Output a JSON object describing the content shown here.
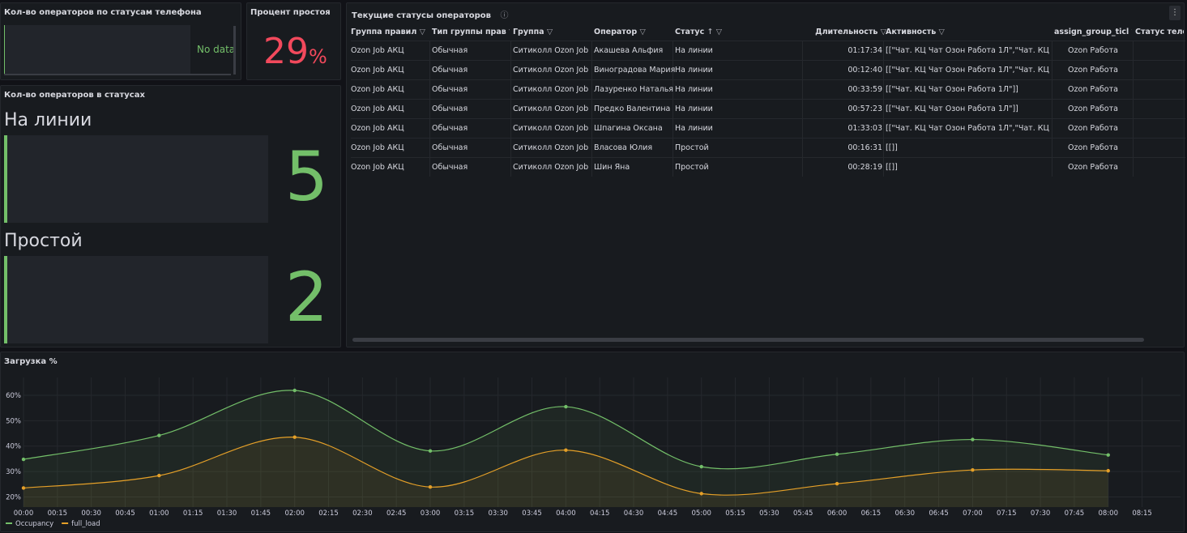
{
  "panels": {
    "phone_status": {
      "title": "Кол-во операторов по статусам телефона",
      "message": "No data"
    },
    "idle": {
      "title": "Процент простоя",
      "value": 29,
      "unit": "%"
    },
    "status_counts": {
      "title": "Кол-во операторов в статусах",
      "items": [
        {
          "label": "На линии",
          "value": 5
        },
        {
          "label": "Простой",
          "value": 2
        }
      ]
    },
    "operators_table": {
      "title": "Текущие статусы операторов",
      "headers": [
        "Группа правил",
        "Тип группы прав",
        "Группа",
        "Оператор",
        "Статус",
        "Длительность",
        "Активность",
        "assign_group_ticl",
        "Статус теле"
      ],
      "rows": [
        [
          "Ozon Job АКЦ",
          "Обычная",
          "Ситиколл Ozon Job",
          "Акашева Альфия",
          "На линии",
          "01:17:34",
          "[[\"Чат. КЦ Чат Озон Работа 1Л\",\"Чат. КЦ Чат",
          "Ozon Работа"
        ],
        [
          "Ozon Job АКЦ",
          "Обычная",
          "Ситиколл Ozon Job",
          "Виноградова Мария",
          "На линии",
          "00:12:40",
          "[[\"Чат. КЦ Чат Озон Работа 1Л\",\"Чат. КЦ Чат",
          "Ozon Работа"
        ],
        [
          "Ozon Job АКЦ",
          "Обычная",
          "Ситиколл Ozon Job",
          "Лазуренко Наталья",
          "На линии",
          "00:33:59",
          "[[\"Чат. КЦ Чат Озон Работа 1Л\"]]",
          "Ozon Работа"
        ],
        [
          "Ozon Job АКЦ",
          "Обычная",
          "Ситиколл Ozon Job",
          "Предко Валентина",
          "На линии",
          "00:57:23",
          "[[\"Чат. КЦ Чат Озон Работа 1Л\"]]",
          "Ozon Работа"
        ],
        [
          "Ozon Job АКЦ",
          "Обычная",
          "Ситиколл Ozon Job",
          "Шпагина Оксана",
          "На линии",
          "01:33:03",
          "[[\"Чат. КЦ Чат Озон Работа 1Л\",\"Чат. КЦ Чат",
          "Ozon Работа"
        ],
        [
          "Ozon Job АКЦ",
          "Обычная",
          "Ситиколл Ozon Job",
          "Власова Юлия",
          "Простой",
          "00:16:31",
          "[[]]",
          "Ozon Работа"
        ],
        [
          "Ozon Job АКЦ",
          "Обычная",
          "Ситиколл Ozon Job",
          "Шин Яна",
          "Простой",
          "00:28:19",
          "[[]]",
          "Ozon Работа"
        ]
      ]
    }
  },
  "chart_data": {
    "type": "line",
    "title": "Загрузка %",
    "x": [
      "00:00",
      "01:00",
      "02:00",
      "03:00",
      "04:00",
      "05:00",
      "06:00",
      "07:00",
      "08:00"
    ],
    "series": [
      {
        "name": "Occupancy",
        "color": "#73bf69",
        "values": [
          34.8,
          44.2,
          61.9,
          38.1,
          55.5,
          31.9,
          36.8,
          42.6,
          36.5
        ]
      },
      {
        "name": "full_load",
        "color": "#e5a028",
        "values": [
          23.5,
          28.4,
          43.5,
          23.9,
          38.4,
          21.3,
          25.2,
          30.6,
          30.3
        ]
      }
    ],
    "xlim": [
      "00:00",
      "08:32"
    ],
    "xticks": [
      "00:00",
      "00:15",
      "00:30",
      "00:45",
      "01:00",
      "01:15",
      "01:30",
      "01:45",
      "02:00",
      "02:15",
      "02:30",
      "02:45",
      "03:00",
      "03:15",
      "03:30",
      "03:45",
      "04:00",
      "04:15",
      "04:30",
      "04:45",
      "05:00",
      "05:15",
      "05:30",
      "05:45",
      "06:00",
      "06:15",
      "06:30",
      "06:45",
      "07:00",
      "07:15",
      "07:30",
      "07:45",
      "08:00",
      "08:15"
    ],
    "ylim": [
      16,
      67
    ],
    "yticks": [
      {
        "value": 20,
        "label": "20%"
      },
      {
        "value": 30,
        "label": "30%"
      },
      {
        "value": 40,
        "label": "40%"
      },
      {
        "value": 50,
        "label": "50%"
      },
      {
        "value": 60,
        "label": "60%"
      }
    ],
    "grid": true,
    "legend": "bottom-left"
  }
}
